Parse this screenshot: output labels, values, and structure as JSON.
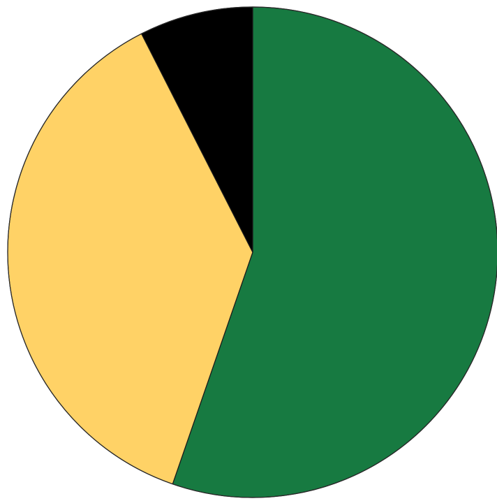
{
  "chart_data": {
    "type": "pie",
    "start": "top",
    "direction": "clockwise",
    "slices": [
      {
        "value": 55.3,
        "color": "#177a41"
      },
      {
        "value": 37.2,
        "color": "#ffd266"
      },
      {
        "value": 7.5,
        "color": "#000000"
      }
    ],
    "title": "",
    "legend": "none"
  }
}
